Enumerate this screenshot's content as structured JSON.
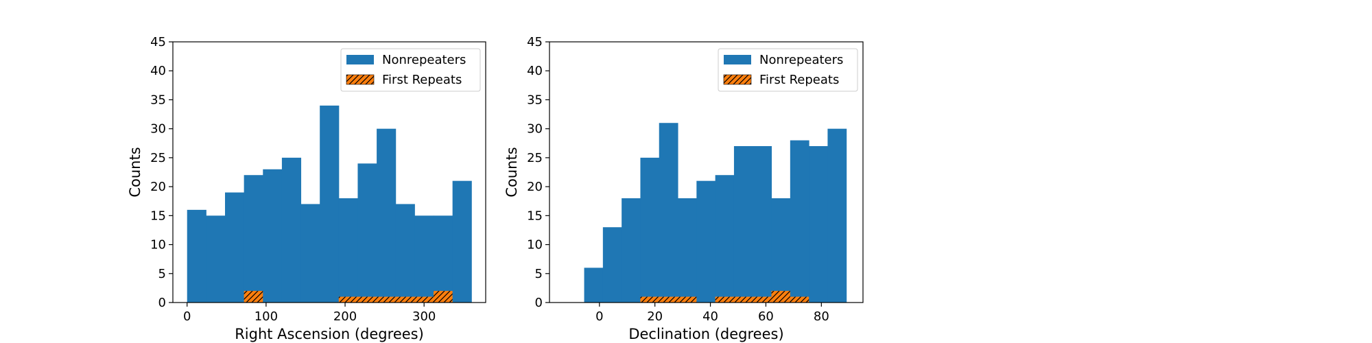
{
  "colors": {
    "nonrepeaters": "#1f77b4",
    "first_repeats": "#ff7f0e",
    "hatch": "#000000",
    "axes": "#000000",
    "legend_border": "#cccccc"
  },
  "chart_data": [
    {
      "type": "histogram",
      "xlabel": "Right Ascension (degrees)",
      "ylabel": "Counts",
      "xlim": [
        -18,
        378
      ],
      "ylim": [
        0,
        45
      ],
      "xticks": [
        0,
        100,
        200,
        300
      ],
      "yticks": [
        0,
        5,
        10,
        15,
        20,
        25,
        30,
        35,
        40,
        45
      ],
      "bin_edges": [
        0,
        24,
        48,
        72,
        96,
        120,
        144,
        168,
        192,
        216,
        240,
        264,
        288,
        312,
        336,
        360
      ],
      "grid": false,
      "legend_position": "top-right",
      "series": [
        {
          "name": "Nonrepeaters",
          "style": "filled",
          "values": [
            16,
            15,
            19,
            22,
            23,
            25,
            17,
            34,
            18,
            24,
            30,
            17,
            15,
            15,
            21
          ]
        },
        {
          "name": "First Repeats",
          "style": "hatched",
          "values": [
            0,
            0,
            0,
            2,
            0,
            0,
            0,
            0,
            1,
            1,
            1,
            1,
            1,
            2,
            0
          ]
        }
      ]
    },
    {
      "type": "histogram",
      "xlabel": "Declination (degrees)",
      "ylabel": "Counts",
      "xlim": [
        -18,
        95
      ],
      "ylim": [
        0,
        45
      ],
      "xticks": [
        0,
        20,
        40,
        60,
        80
      ],
      "yticks": [
        0,
        5,
        10,
        15,
        20,
        25,
        30,
        35,
        40,
        45
      ],
      "bin_edges": [
        -5.5,
        1.25,
        8,
        14.75,
        21.5,
        28.25,
        35,
        41.75,
        48.5,
        55.25,
        62,
        68.75,
        75.5,
        82.25,
        89
      ],
      "grid": false,
      "legend_position": "top-right",
      "series": [
        {
          "name": "Nonrepeaters",
          "style": "filled",
          "values": [
            6,
            13,
            18,
            25,
            31,
            18,
            21,
            22,
            27,
            27,
            18,
            28,
            27,
            30
          ]
        },
        {
          "name": "First Repeats",
          "style": "hatched",
          "values": [
            0,
            0,
            0,
            1,
            1,
            1,
            0,
            1,
            1,
            1,
            2,
            1,
            0,
            0
          ]
        }
      ]
    }
  ]
}
